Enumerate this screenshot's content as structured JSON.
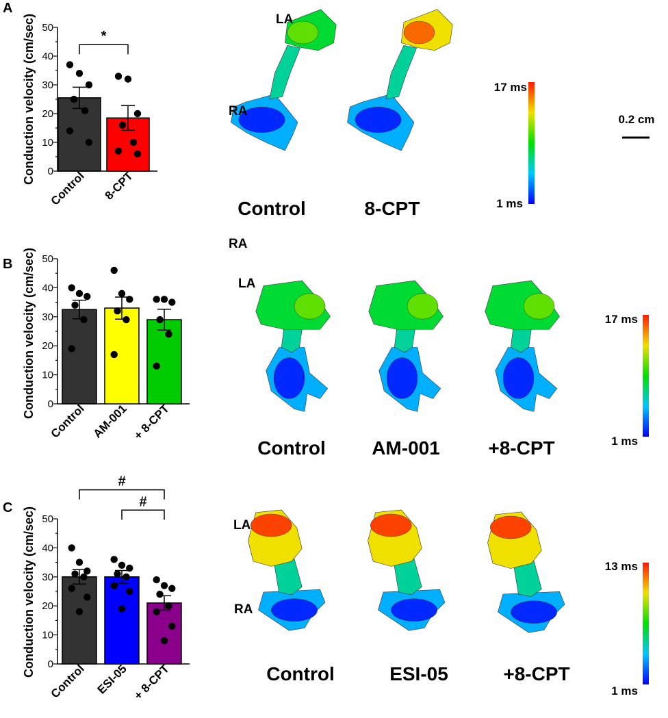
{
  "chart_data": [
    {
      "panel": "A",
      "type": "bar",
      "ylabel": "Conduction velocity (cm/sec)",
      "ylim": [
        0,
        50
      ],
      "yticks": [
        0,
        10,
        20,
        30,
        40,
        50
      ],
      "categories": [
        "Control",
        "8-CPT"
      ],
      "values": [
        25.5,
        18.5
      ],
      "errors": [
        3.7,
        4.3
      ],
      "colors": [
        "#333333",
        "#ff0000"
      ],
      "points": [
        [
          37,
          34,
          30,
          25,
          21,
          14,
          10
        ],
        [
          33,
          32,
          20,
          16,
          10,
          7,
          6
        ]
      ],
      "significance": [
        {
          "from": 0,
          "to": 1,
          "label": "*",
          "y": 44
        }
      ],
      "maps": {
        "titles": [
          "Control",
          "8-CPT"
        ],
        "regions": [
          "LA",
          "RA"
        ],
        "colorbar": {
          "max": "17 ms",
          "min": "1 ms"
        },
        "scale_bar": "0.2 cm"
      }
    },
    {
      "panel": "B",
      "type": "bar",
      "ylabel": "Conduction velocity (cm/sec)",
      "ylim": [
        0,
        50
      ],
      "yticks": [
        0,
        10,
        20,
        30,
        40,
        50
      ],
      "categories": [
        "Control",
        "AM-001",
        "+ 8-CPT"
      ],
      "values": [
        32.5,
        33,
        29
      ],
      "errors": [
        3.2,
        3.8,
        3.6
      ],
      "colors": [
        "#333333",
        "#ffff00",
        "#00cc00"
      ],
      "points": [
        [
          40,
          38,
          37,
          34,
          29,
          19
        ],
        [
          46,
          38,
          36,
          32,
          29,
          17
        ],
        [
          36,
          36,
          35,
          29,
          24,
          13
        ]
      ],
      "significance": [],
      "maps": {
        "titles": [
          "Control",
          "AM-001",
          "+8-CPT"
        ],
        "regions": [
          "LA",
          "RA"
        ],
        "colorbar": {
          "max": "17 ms",
          "min": "1 ms"
        }
      }
    },
    {
      "panel": "C",
      "type": "bar",
      "ylabel": "Conduction velocity (cm/sec)",
      "ylim": [
        0,
        50
      ],
      "yticks": [
        0,
        10,
        20,
        30,
        40,
        50
      ],
      "categories": [
        "Control",
        "ESI-05",
        "+ 8-CPT"
      ],
      "values": [
        30,
        30,
        21
      ],
      "errors": [
        2.5,
        2.2,
        2.5
      ],
      "colors": [
        "#333333",
        "#0000ff",
        "#8b008b"
      ],
      "points": [
        [
          40,
          35,
          32,
          31,
          30,
          26,
          23,
          18
        ],
        [
          36,
          34,
          33,
          31,
          30,
          27,
          25,
          19
        ],
        [
          29,
          27,
          26,
          24,
          20,
          18,
          13,
          8
        ]
      ],
      "significance": [
        {
          "from": 0,
          "to": 2,
          "label": "#",
          "y": 60
        },
        {
          "from": 1,
          "to": 2,
          "label": "#",
          "y": 53
        }
      ],
      "maps": {
        "titles": [
          "Control",
          "ESI-05",
          "+8-CPT"
        ],
        "regions": [
          "LA",
          "RA"
        ],
        "colorbar": {
          "max": "13 ms",
          "min": "1 ms"
        }
      }
    }
  ]
}
